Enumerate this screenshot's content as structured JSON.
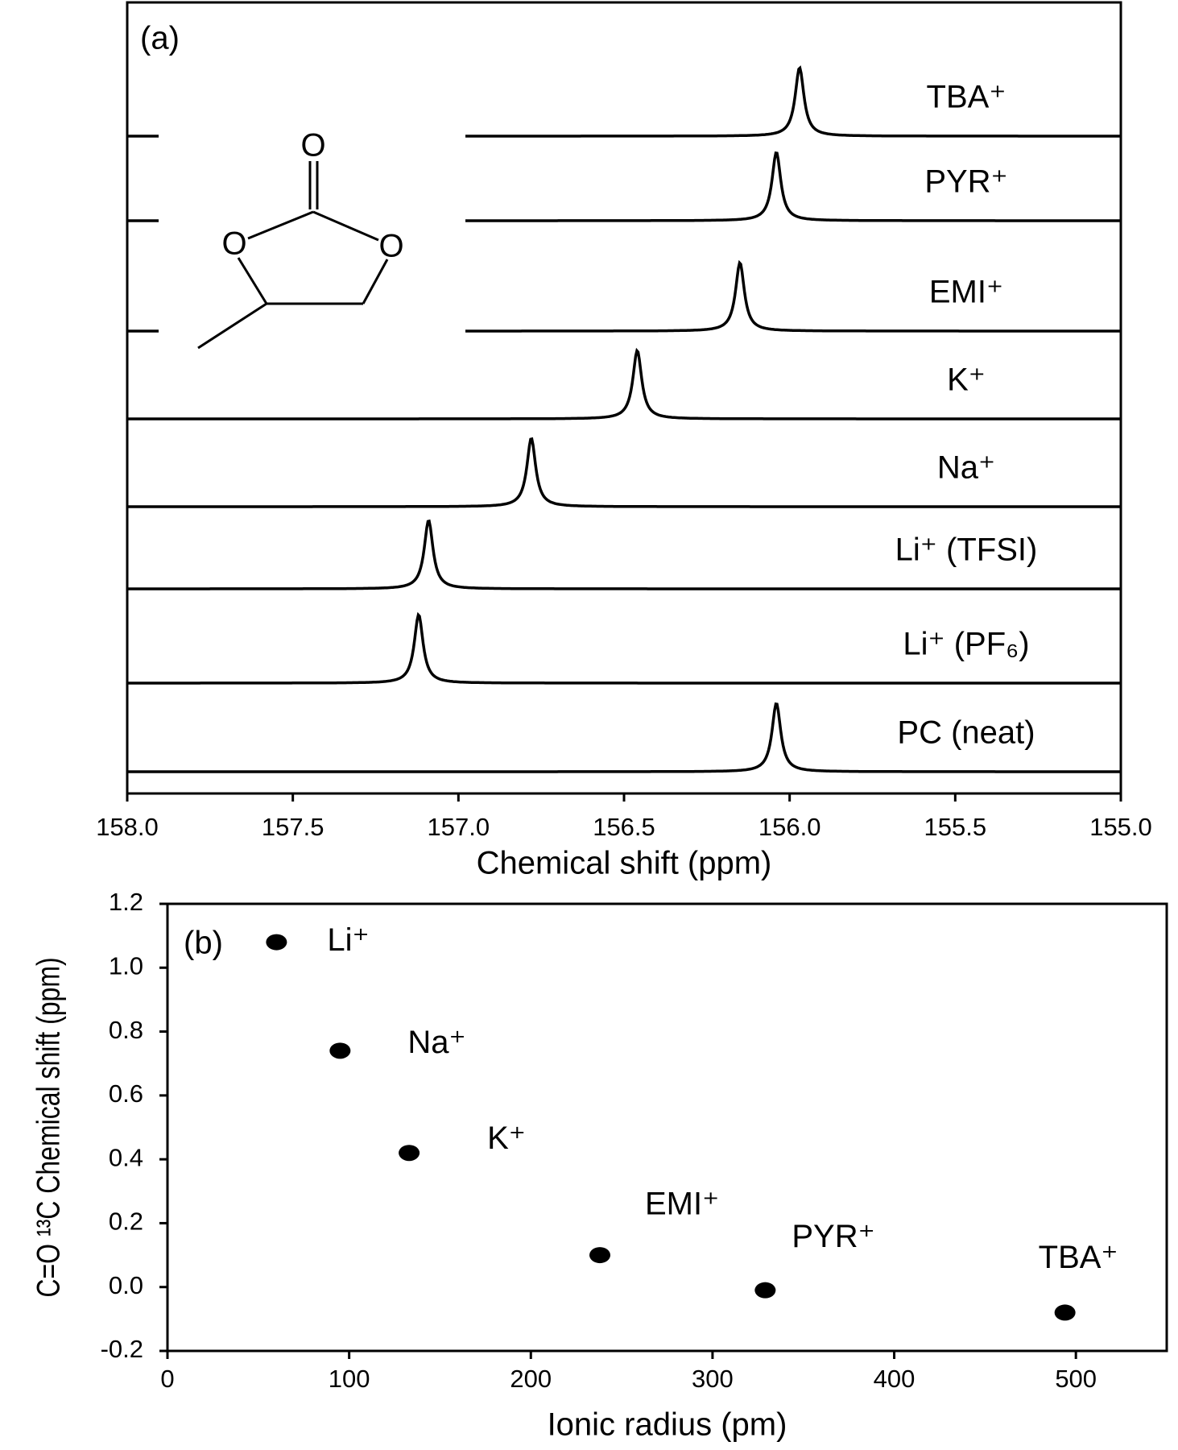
{
  "chart_data": [
    {
      "type": "spectrum",
      "annotation": "(a)",
      "xlabel": "Chemical shift (ppm)",
      "xlim": [
        158,
        155
      ],
      "xticks": [
        {
          "value": 158,
          "label": "158.0"
        },
        157.5,
        {
          "value": 157,
          "label": "157.0"
        },
        156.5,
        {
          "value": 156,
          "label": "156.0"
        },
        155.5,
        {
          "value": 155,
          "label": "155.0"
        }
      ],
      "inset_labels": [
        "O",
        "O",
        "O"
      ],
      "series": [
        {
          "name": "TBA⁺",
          "peak": 155.97
        },
        {
          "name": "PYR⁺",
          "peak": 156.04
        },
        {
          "name": "EMI⁺",
          "peak": 156.15
        },
        {
          "name": "K⁺",
          "peak": 156.46
        },
        {
          "name": "Na⁺",
          "peak": 156.78
        },
        {
          "name": "Li⁺ (TFSI)",
          "peak": 157.09
        },
        {
          "name": "Li⁺ (PF₆)",
          "peak": 157.12
        },
        {
          "name": "PC (neat)",
          "peak": 156.04
        }
      ]
    },
    {
      "type": "scatter",
      "annotation": "(b)",
      "xlabel": "Ionic radius (pm)",
      "ylabel": "C=O ¹³C Chemical shift (ppm)",
      "xlim": [
        0,
        550
      ],
      "xticks": [
        0,
        100,
        200,
        300,
        400,
        500
      ],
      "ylim": [
        -0.2,
        1.2
      ],
      "yticks": [
        -0.2,
        {
          "value": 0,
          "label": "0.0"
        },
        0.2,
        0.4,
        0.6,
        0.8,
        {
          "value": 1,
          "label": "1.0"
        },
        1.2
      ],
      "labels": [
        "Li⁺",
        "Na⁺",
        "K⁺",
        "EMI⁺",
        "PYR⁺",
        "TBA⁺"
      ],
      "x": [
        60,
        95,
        133,
        238,
        329,
        494
      ],
      "values": [
        1.08,
        0.74,
        0.42,
        0.1,
        -0.01,
        -0.08
      ]
    }
  ]
}
